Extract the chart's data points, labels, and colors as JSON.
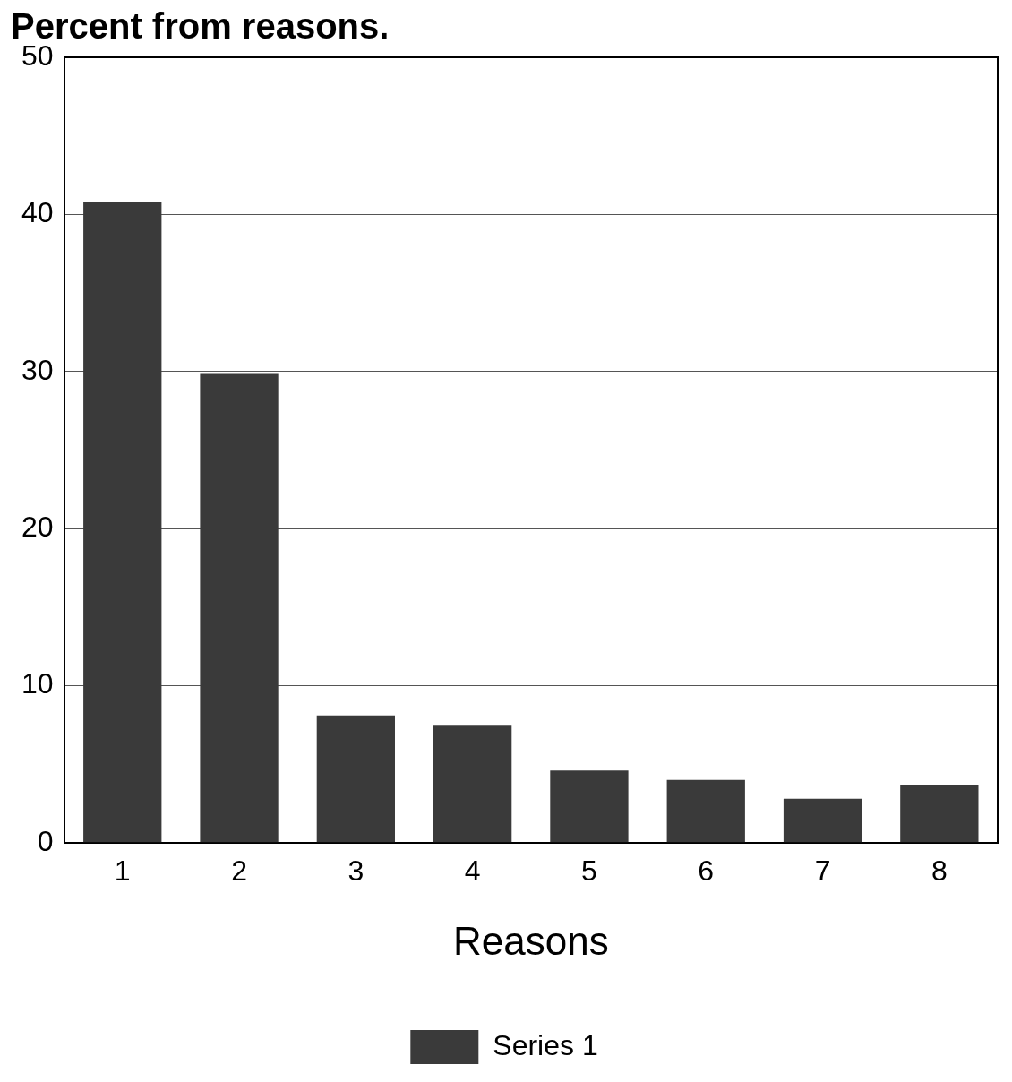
{
  "chart_data": {
    "type": "bar",
    "title": "Percent from reasons.",
    "xlabel": "Reasons",
    "categories": [
      "1",
      "2",
      "3",
      "4",
      "5",
      "6",
      "7",
      "8"
    ],
    "series": [
      {
        "name": "Series 1",
        "color": "#3a3a3a",
        "values": [
          40.8,
          29.9,
          8.1,
          7.5,
          4.6,
          4.0,
          2.8,
          3.7
        ]
      }
    ],
    "ylim": [
      0,
      50
    ],
    "yticks": [
      0,
      10,
      20,
      30,
      40,
      50
    ],
    "grid": "y",
    "legend": "bottom"
  }
}
